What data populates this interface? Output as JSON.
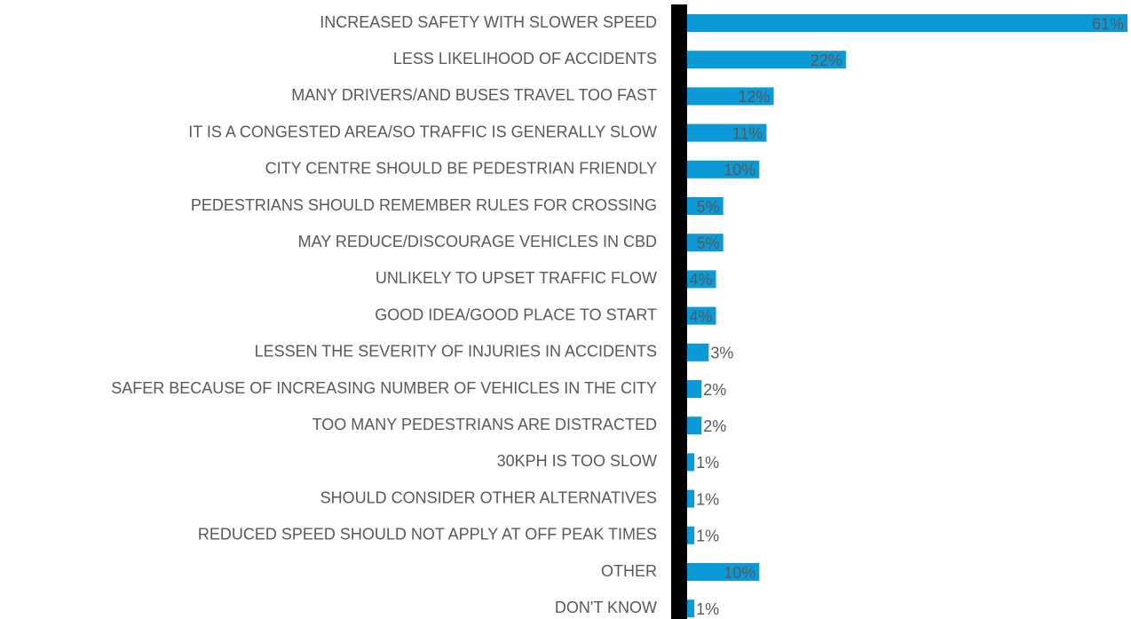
{
  "chart_data": {
    "type": "bar",
    "orientation": "horizontal",
    "color": "#0b9ad6",
    "categories": [
      "INCREASED SAFETY WITH SLOWER SPEED",
      "LESS LIKELIHOOD OF ACCIDENTS",
      "MANY DRIVERS/AND BUSES TRAVEL TOO FAST",
      "IT IS A CONGESTED AREA/SO TRAFFIC IS GENERALLY SLOW",
      "CITY CENTRE SHOULD BE PEDESTRIAN FRIENDLY",
      "PEDESTRIANS SHOULD REMEMBER RULES FOR CROSSING",
      "MAY REDUCE/DISCOURAGE VEHICLES IN CBD",
      "UNLIKELY TO UPSET TRAFFIC FLOW",
      "GOOD IDEA/GOOD PLACE TO START",
      "LESSEN THE SEVERITY OF INJURIES IN ACCIDENTS",
      "SAFER BECAUSE OF INCREASING NUMBER OF VEHICLES IN THE CITY",
      "TOO MANY PEDESTRIANS ARE DISTRACTED",
      "30KPH IS TOO SLOW",
      "SHOULD CONSIDER OTHER ALTERNATIVES",
      "REDUCED SPEED SHOULD NOT APPLY AT OFF PEAK TIMES",
      "OTHER",
      "DON'T KNOW"
    ],
    "values": [
      61,
      22,
      12,
      11,
      10,
      5,
      5,
      4,
      4,
      3,
      2,
      2,
      1,
      1,
      1,
      10,
      1
    ],
    "value_labels": [
      "61%",
      "22%",
      "12%",
      "11%",
      "10%",
      "5%",
      "5%",
      "4%",
      "4%",
      "3%",
      "2%",
      "2%",
      "1%",
      "1%",
      "1%",
      "10%",
      "1%"
    ]
  }
}
